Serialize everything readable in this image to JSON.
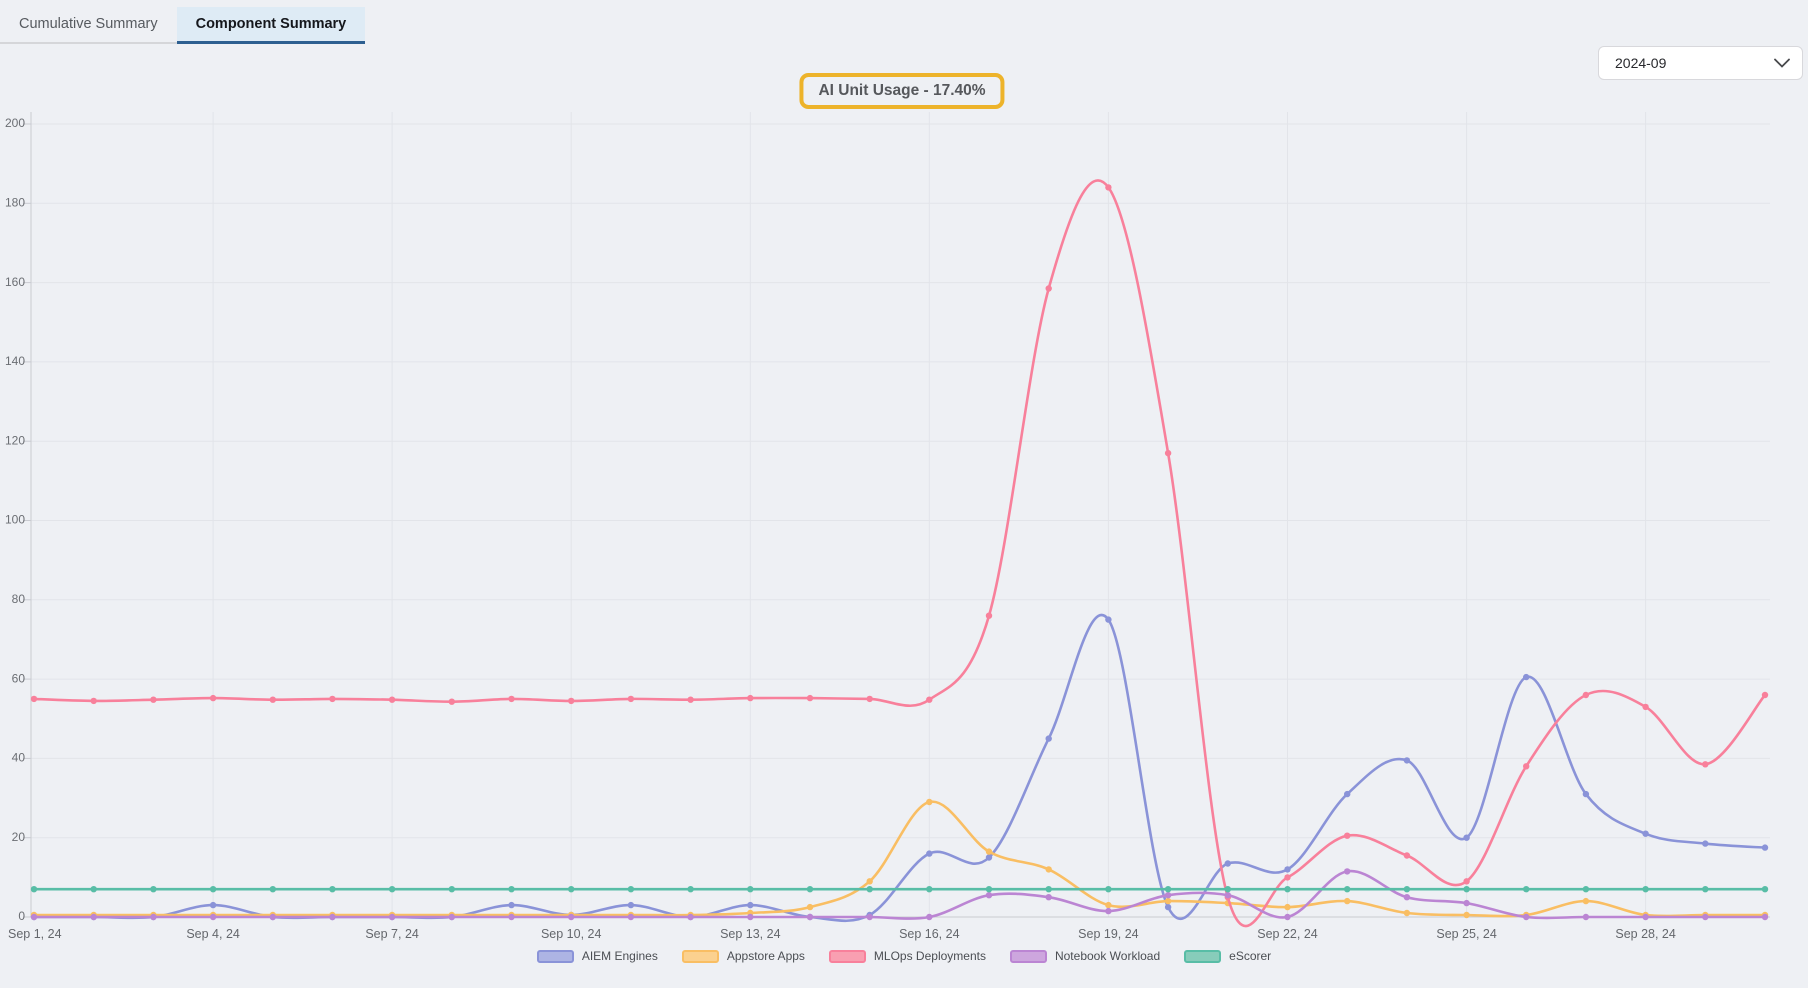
{
  "tabs": [
    {
      "label": "Cumulative Summary",
      "active": false
    },
    {
      "label": "Component Summary",
      "active": true
    }
  ],
  "controls": {
    "month_selector": {
      "value": "2024-09"
    }
  },
  "title_badge": {
    "text": "AI Unit Usage - 17.40%"
  },
  "chart_data": {
    "type": "line",
    "title": "AI Unit Usage - 17.40%",
    "x_labels": [
      "Sep 1, 24",
      "Sep 2, 24",
      "Sep 3, 24",
      "Sep 4, 24",
      "Sep 5, 24",
      "Sep 6, 24",
      "Sep 7, 24",
      "Sep 8, 24",
      "Sep 9, 24",
      "Sep 10, 24",
      "Sep 11, 24",
      "Sep 12, 24",
      "Sep 13, 24",
      "Sep 14, 24",
      "Sep 15, 24",
      "Sep 16, 24",
      "Sep 17, 24",
      "Sep 18, 24",
      "Sep 19, 24",
      "Sep 20, 24",
      "Sep 21, 24",
      "Sep 22, 24",
      "Sep 23, 24",
      "Sep 24, 24",
      "Sep 25, 24",
      "Sep 26, 24",
      "Sep 27, 24",
      "Sep 28, 24",
      "Sep 29, 24",
      "Sep 30, 24"
    ],
    "x_tick_days": [
      1,
      4,
      7,
      10,
      13,
      16,
      19,
      22,
      25,
      28
    ],
    "ylim": [
      0,
      200
    ],
    "y_tick_step": 20,
    "grid": true,
    "legend_position": "bottom",
    "series": [
      {
        "name": "AIEM Engines",
        "color": "#8a93d8",
        "swatch_fill": "#adb4e4",
        "values": [
          0,
          0,
          0,
          3,
          0,
          0,
          0,
          0,
          3,
          0.5,
          3,
          0,
          3,
          0,
          0.5,
          16,
          15,
          45,
          75,
          2.5,
          13.5,
          12,
          31,
          39.5,
          20,
          60.5,
          31,
          21,
          18.5,
          17.5
        ]
      },
      {
        "name": "Appstore Apps",
        "color": "#f9be63",
        "swatch_fill": "#fbd18f",
        "values": [
          0.5,
          0.5,
          0.5,
          0.5,
          0.5,
          0.5,
          0.5,
          0.5,
          0.5,
          0.5,
          0.5,
          0.5,
          1,
          2.5,
          9,
          29,
          16.5,
          12,
          3,
          4,
          3.5,
          2.5,
          4,
          1,
          0.5,
          0.5,
          4,
          0.5,
          0.5,
          0.5
        ]
      },
      {
        "name": "MLOps Deployments",
        "color": "#f8809b",
        "swatch_fill": "#f99fb1",
        "values": [
          55,
          54.5,
          54.8,
          55.2,
          54.8,
          55,
          54.8,
          54.3,
          55,
          54.5,
          55,
          54.8,
          55.2,
          55.2,
          55,
          54.8,
          76,
          158.5,
          184,
          117,
          5,
          10,
          20.5,
          15.5,
          9,
          38,
          56,
          53,
          38.5,
          56
        ]
      },
      {
        "name": "Notebook Workload",
        "color": "#bb85d3",
        "swatch_fill": "#cda6de",
        "values": [
          0,
          0,
          0,
          0,
          0,
          0,
          0,
          0,
          0,
          0,
          0,
          0,
          0,
          0,
          0,
          0,
          5.5,
          5,
          1.5,
          5.5,
          5.5,
          0,
          11.5,
          5,
          3.5,
          0,
          0,
          0,
          0,
          0
        ]
      },
      {
        "name": "eScorer",
        "color": "#58bda6",
        "swatch_fill": "#87ccba",
        "values": [
          7,
          7,
          7,
          7,
          7,
          7,
          7,
          7,
          7,
          7,
          7,
          7,
          7,
          7,
          7,
          7,
          7,
          7,
          7,
          7,
          7,
          7,
          7,
          7,
          7,
          7,
          7,
          7,
          7,
          7
        ]
      }
    ],
    "theme": {
      "background": "#eef0f4",
      "grid_color": "#e2e4e9",
      "axis_color": "#c9cbd1",
      "axis_label_color": "#6b6e73",
      "title_border_color": "#edb32a",
      "title_text_color": "#56585c",
      "active_tab_bg": "#deebf5",
      "active_tab_underline": "#2d5f90"
    }
  }
}
